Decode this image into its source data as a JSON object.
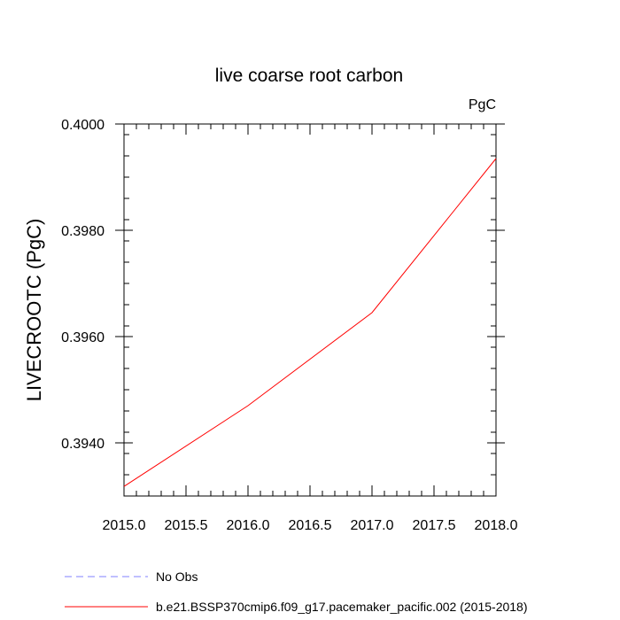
{
  "chart_data": {
    "type": "line",
    "title": "live coarse root carbon",
    "units_label": "PgC",
    "ylabel": "LIVECROOTC  (PgC)",
    "xlabel": "",
    "xlim": [
      2015.0,
      2018.0
    ],
    "ylim": [
      0.393,
      0.4
    ],
    "x_ticks": [
      2015.0,
      2015.5,
      2016.0,
      2016.5,
      2017.0,
      2017.5,
      2018.0
    ],
    "x_tick_labels": [
      "2015.0",
      "2015.5",
      "2016.0",
      "2016.5",
      "2017.0",
      "2017.5",
      "2018.0"
    ],
    "y_ticks": [
      0.394,
      0.396,
      0.398,
      0.4
    ],
    "y_tick_labels": [
      "0.3940",
      "0.3960",
      "0.3980",
      "0.4000"
    ],
    "grid": false,
    "legend_placement": "bottom",
    "series": [
      {
        "name": "No Obs",
        "color": "#8080ff",
        "dash": "dashed",
        "x": [],
        "y": []
      },
      {
        "name": "b.e21.BSSP370cmip6.f09_g17.pacemaker_pacific.002 (2015-2018)",
        "color": "#ff0000",
        "dash": "solid",
        "x": [
          2015.0,
          2016.0,
          2017.0,
          2018.0
        ],
        "y": [
          0.39318,
          0.3947,
          0.39645,
          0.39935
        ]
      }
    ]
  }
}
